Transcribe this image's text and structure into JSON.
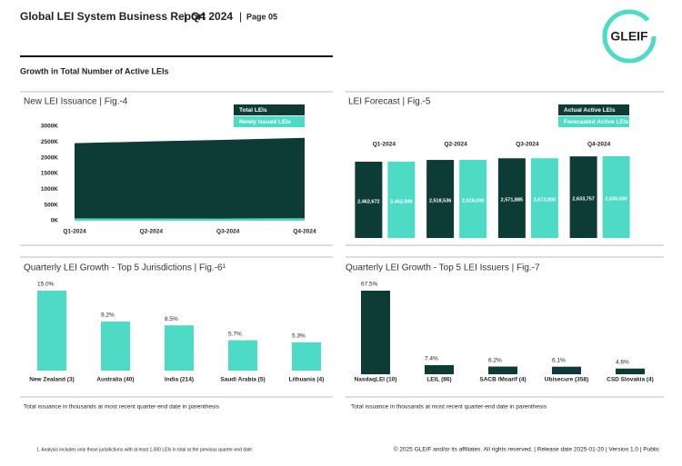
{
  "header": {
    "title": "Global LEI System Business Report",
    "quarter": "Q4 2024",
    "page": "Page 05",
    "logo": "GLEIF"
  },
  "section_title": "Growth in Total Number of Active LEIs",
  "chart_data": [
    {
      "type": "area",
      "title": "New LEI Issuance | Fig.-4",
      "categories": [
        "Q1-2024",
        "Q2-2024",
        "Q3-2024",
        "Q4-2024"
      ],
      "series": [
        {
          "name": "Total LEIs",
          "color": "#0d3b36",
          "values": [
            2463,
            2519,
            2572,
            2634
          ]
        },
        {
          "name": "Newly Issued LEIs",
          "color": "#4ddbc6",
          "values": [
            75,
            72,
            70,
            78
          ]
        }
      ],
      "ylim": [
        0,
        3000
      ],
      "yticks": [
        {
          "value": 0,
          "label": "0K"
        },
        {
          "value": 500,
          "label": "500K"
        },
        {
          "value": 1000,
          "label": "1000K"
        },
        {
          "value": 1500,
          "label": "1500K"
        },
        {
          "value": 2000,
          "label": "2000K"
        },
        {
          "value": 2500,
          "label": "2500K"
        },
        {
          "value": 3000,
          "label": "3000K"
        }
      ]
    },
    {
      "type": "bar",
      "title": "LEI Forecast | Fig.-5",
      "categories": [
        "Q1-2024",
        "Q2-2024",
        "Q3-2024",
        "Q4-2024"
      ],
      "series": [
        {
          "name": "Actual Active LEIs",
          "color": "#0d3b36",
          "values": [
            2462672,
            2518536,
            2571885,
            2633757
          ],
          "value_labels": [
            "2,462,672",
            "2,518,536",
            "2,571,885",
            "2,633,757"
          ]
        },
        {
          "name": "Forecasted Active LEIs",
          "color": "#4ddbc6",
          "values": [
            2462000,
            2519000,
            2572000,
            2638000
          ],
          "value_labels": [
            "2,462,000",
            "2,519,000",
            "2,572,000",
            "2,638,000"
          ]
        }
      ]
    },
    {
      "type": "bar",
      "title": "Quarterly LEI Growth - Top 5 Jurisdictions | Fig.-6¹",
      "categories": [
        "New Zealand (3)",
        "Australia (40)",
        "India (214)",
        "Saudi Arabia (5)",
        "Lithuania (4)"
      ],
      "values": [
        15.0,
        9.2,
        8.5,
        5.7,
        5.3
      ],
      "value_labels": [
        "15.0%",
        "9.2%",
        "8.5%",
        "5.7%",
        "5.3%"
      ],
      "color": "#4ddbc6",
      "note": "Total issuance in thousands at most recent quarter-end date in parenthesis"
    },
    {
      "type": "bar",
      "title": "Quarterly LEI Growth - Top 5 LEI Issuers | Fig.-7",
      "categories": [
        "NasdaqLEI (10)",
        "LEIL (86)",
        "SACB /Moarif (4)",
        "Ubisecure (358)",
        "CSD Slovakia (4)"
      ],
      "values": [
        67.5,
        7.4,
        6.2,
        6.1,
        4.6
      ],
      "value_labels": [
        "67.5%",
        "7.4%",
        "6.2%",
        "6.1%",
        "4.6%"
      ],
      "color": "#0d3b36",
      "note": "Total issuance in thousands at most recent quarter-end date in parenthesis"
    }
  ],
  "footer": {
    "footnote": "1. Analysis includes only those jurisdictions with at least 1,000 LEIs in total at the previous quarter-end date.",
    "copyright": "© 2025 GLEIF and/or its affiliates. All rights reserved. | Release date 2025-01-20 | Version 1.0 | Public"
  }
}
